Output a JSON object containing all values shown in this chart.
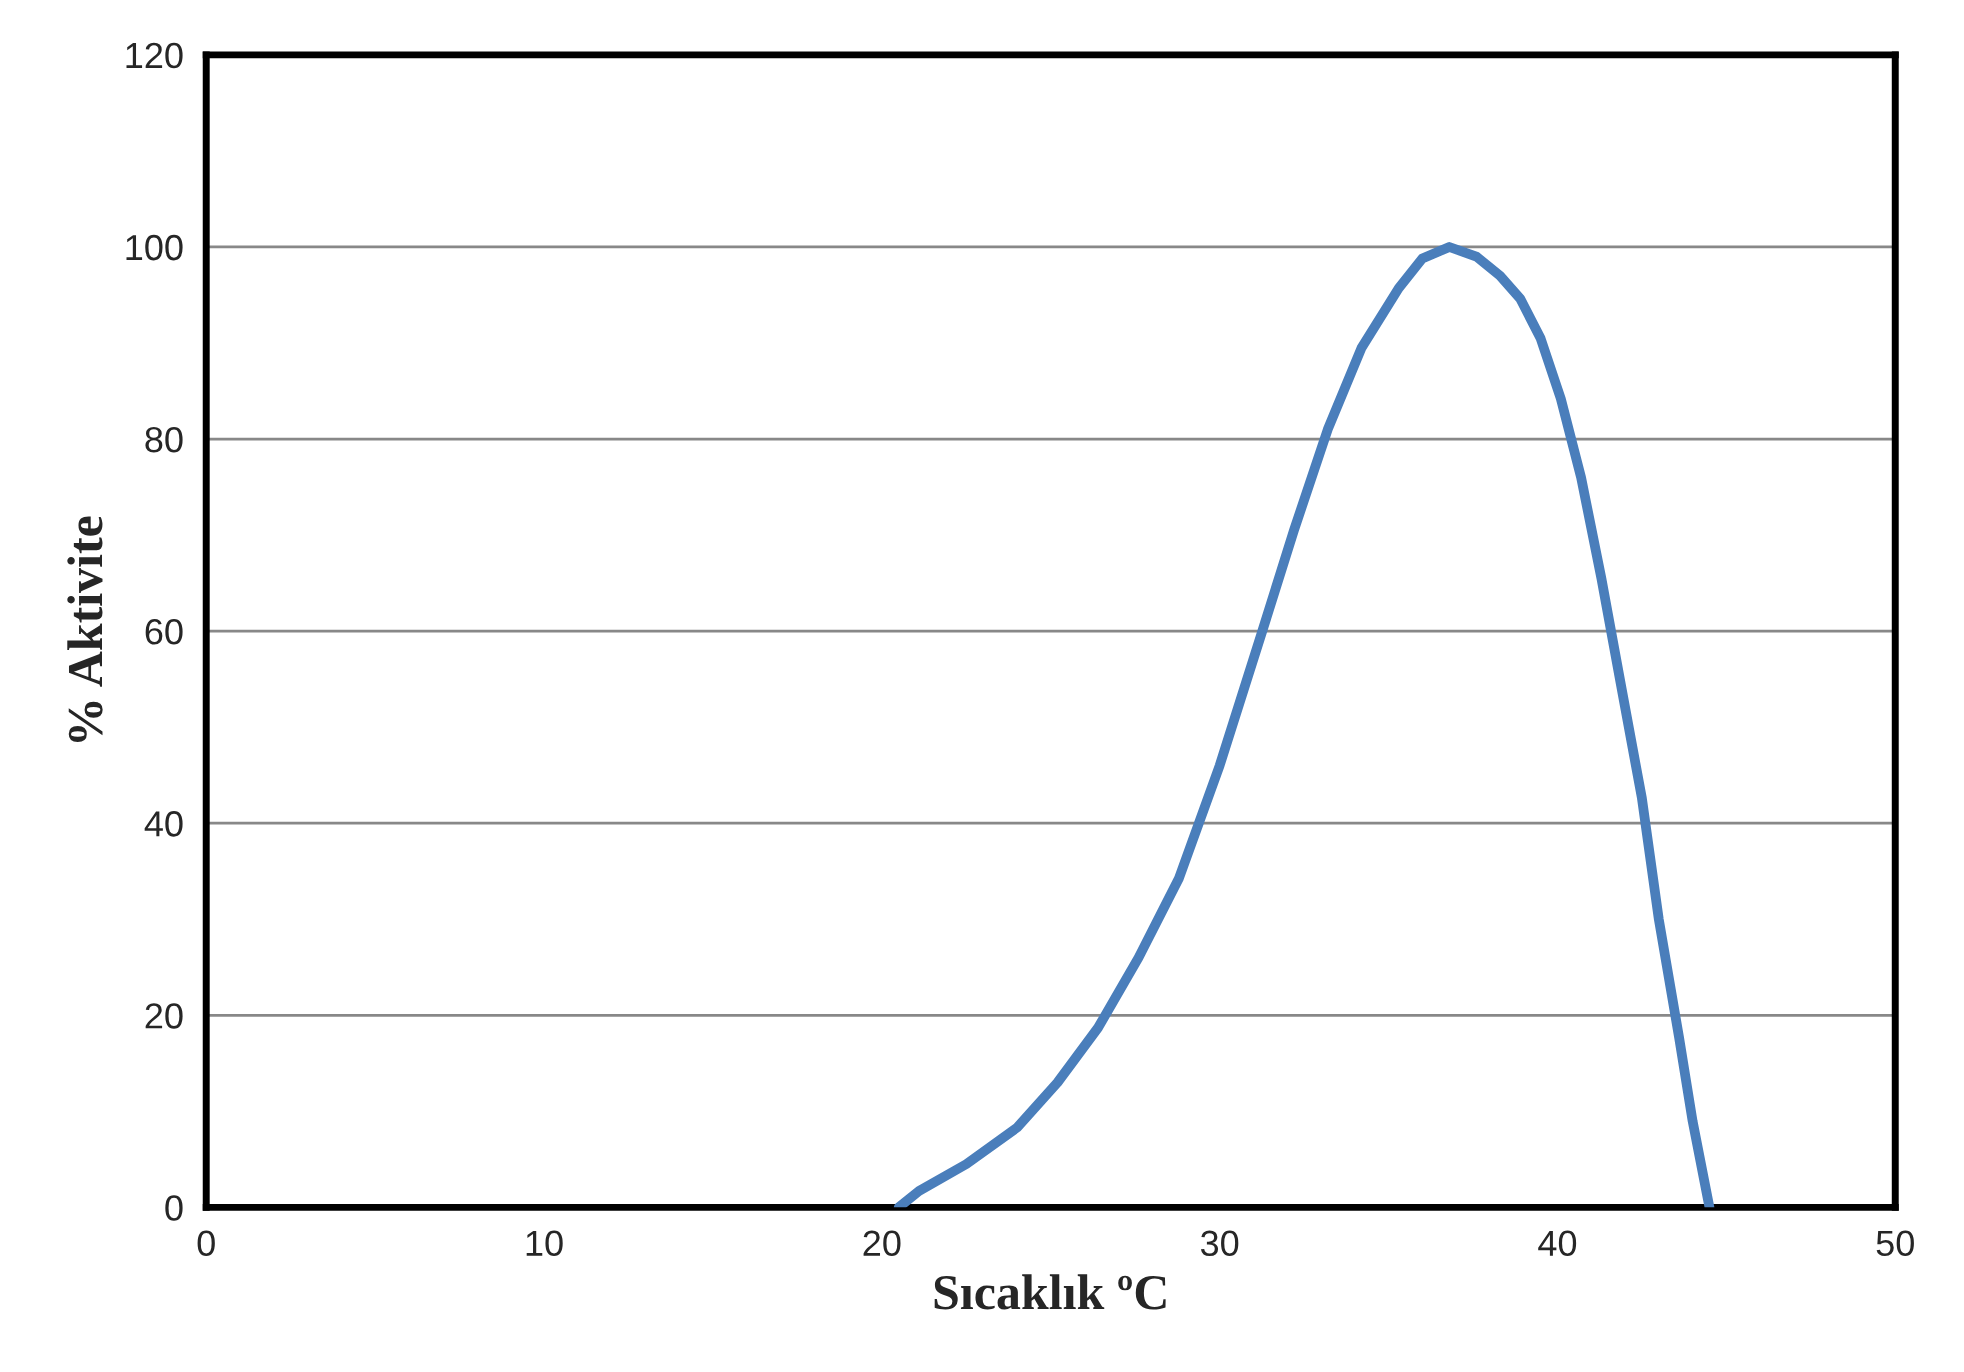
{
  "chart_data": {
    "type": "line",
    "xlabel": "Sıcaklık ºC",
    "ylabel": "% Aktivite",
    "series": [
      {
        "color": "#4a7ebb",
        "x": [
          20.5,
          21.1,
          22.5,
          24.0,
          25.2,
          26.4,
          27.6,
          28.8,
          30.0,
          31.2,
          32.2,
          33.2,
          34.2,
          35.3,
          36.0,
          36.8,
          37.6,
          38.3,
          38.9,
          39.5,
          40.1,
          40.7,
          41.3,
          41.9,
          42.5,
          43.0,
          43.6,
          44.0,
          44.5
        ],
        "values": [
          0,
          1.7,
          4.5,
          8.3,
          13,
          18.7,
          26,
          34.3,
          46,
          59.3,
          70.5,
          81,
          89.5,
          95.7,
          98.8,
          100,
          99,
          97,
          94.6,
          90.5,
          84.2,
          76,
          65.5,
          54,
          42.6,
          30,
          17.7,
          9,
          0
        ]
      }
    ],
    "xlim": [
      0,
      50
    ],
    "xticks": [
      0,
      10,
      20,
      30,
      40,
      50
    ],
    "ylim": [
      0,
      120
    ],
    "yticks": [
      0,
      20,
      40,
      60,
      80,
      100,
      120
    ],
    "grid": "y",
    "legend": false
  }
}
